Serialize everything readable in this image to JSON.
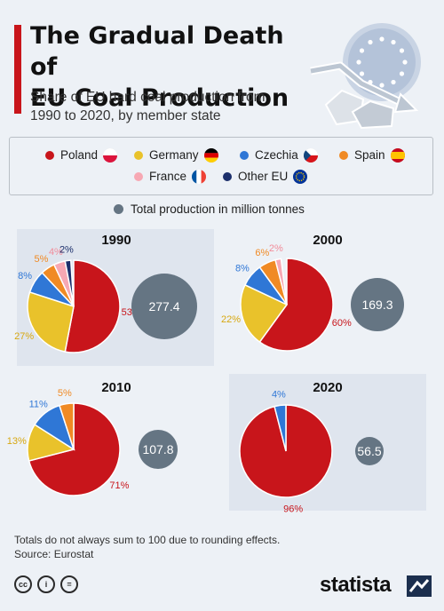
{
  "header": {
    "title_line1": "The Gradual Death of",
    "title_line2": "EU Coal Production",
    "subtitle_line1": "Share of EU hard coal production from",
    "subtitle_line2": "1990 to 2020, by member state"
  },
  "legend": {
    "items": [
      {
        "label": "Poland",
        "color": "#c8151b",
        "flag": "poland-flag-icon"
      },
      {
        "label": "Germany",
        "color": "#e9c22b",
        "flag": "germany-flag-icon"
      },
      {
        "label": "Czechia",
        "color": "#2f77d6",
        "flag": "czechia-flag-icon"
      },
      {
        "label": "Spain",
        "color": "#f08a24",
        "flag": "spain-flag-icon"
      },
      {
        "label": "France",
        "color": "#f7a8b3",
        "flag": "france-flag-icon"
      },
      {
        "label": "Other EU",
        "color": "#1c2f6b",
        "flag": "eu-flag-icon"
      }
    ],
    "total_label": "Total production in million tonnes",
    "total_color": "#657583"
  },
  "chart_data": [
    {
      "type": "pie",
      "title": "1990",
      "total": "277.4",
      "slices": [
        {
          "name": "Poland",
          "value": 53,
          "label": "53%"
        },
        {
          "name": "Germany",
          "value": 27,
          "label": "27%"
        },
        {
          "name": "Czechia",
          "value": 8,
          "label": "8%"
        },
        {
          "name": "Spain",
          "value": 5,
          "label": "5%"
        },
        {
          "name": "France",
          "value": 4,
          "label": "4%"
        },
        {
          "name": "Other EU",
          "value": 2,
          "label": "2%"
        }
      ]
    },
    {
      "type": "pie",
      "title": "2000",
      "total": "169.3",
      "slices": [
        {
          "name": "Poland",
          "value": 60,
          "label": "60%"
        },
        {
          "name": "Germany",
          "value": 22,
          "label": "22%"
        },
        {
          "name": "Czechia",
          "value": 8,
          "label": "8%"
        },
        {
          "name": "Spain",
          "value": 6,
          "label": "6%"
        },
        {
          "name": "France",
          "value": 2,
          "label": "2%"
        }
      ]
    },
    {
      "type": "pie",
      "title": "2010",
      "total": "107.8",
      "slices": [
        {
          "name": "Poland",
          "value": 71,
          "label": "71%"
        },
        {
          "name": "Germany",
          "value": 13,
          "label": "13%"
        },
        {
          "name": "Czechia",
          "value": 11,
          "label": "11%"
        },
        {
          "name": "Spain",
          "value": 5,
          "label": "5%"
        }
      ]
    },
    {
      "type": "pie",
      "title": "2020",
      "total": "56.5",
      "slices": [
        {
          "name": "Poland",
          "value": 96,
          "label": "96%"
        },
        {
          "name": "Czechia",
          "value": 4,
          "label": "4%"
        }
      ]
    }
  ],
  "footer": {
    "note": "Totals do not always sum to 100 due to rounding effects.",
    "source": "Source: Eurostat",
    "brand": "statista"
  }
}
